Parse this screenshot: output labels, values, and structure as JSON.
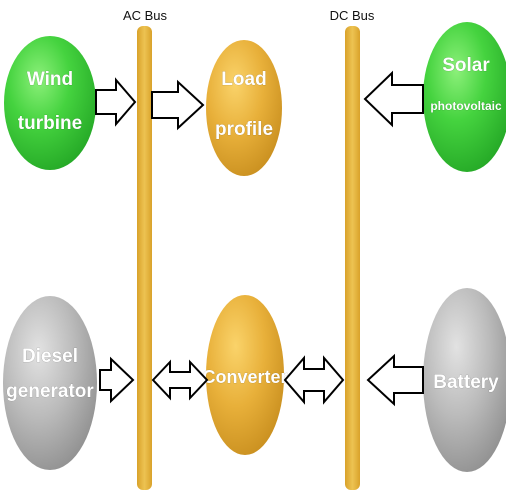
{
  "buses": {
    "ac": {
      "label": "AC Bus"
    },
    "dc": {
      "label": "DC Bus"
    }
  },
  "nodes": {
    "wind": {
      "line1": "Wind",
      "line2": "turbine"
    },
    "load": {
      "line1": "Load",
      "line2": "profile"
    },
    "solar": {
      "line1": "Solar",
      "line2": "photovoltaic"
    },
    "diesel": {
      "line1": "Diesel",
      "line2": "generator"
    },
    "converter": {
      "line1": "Converter"
    },
    "battery": {
      "line1": "Battery"
    }
  },
  "colors": {
    "bus": "#E5B53C",
    "green": "#3EC93C",
    "orange": "#E7AE34",
    "gray": "#B3B3B3"
  }
}
